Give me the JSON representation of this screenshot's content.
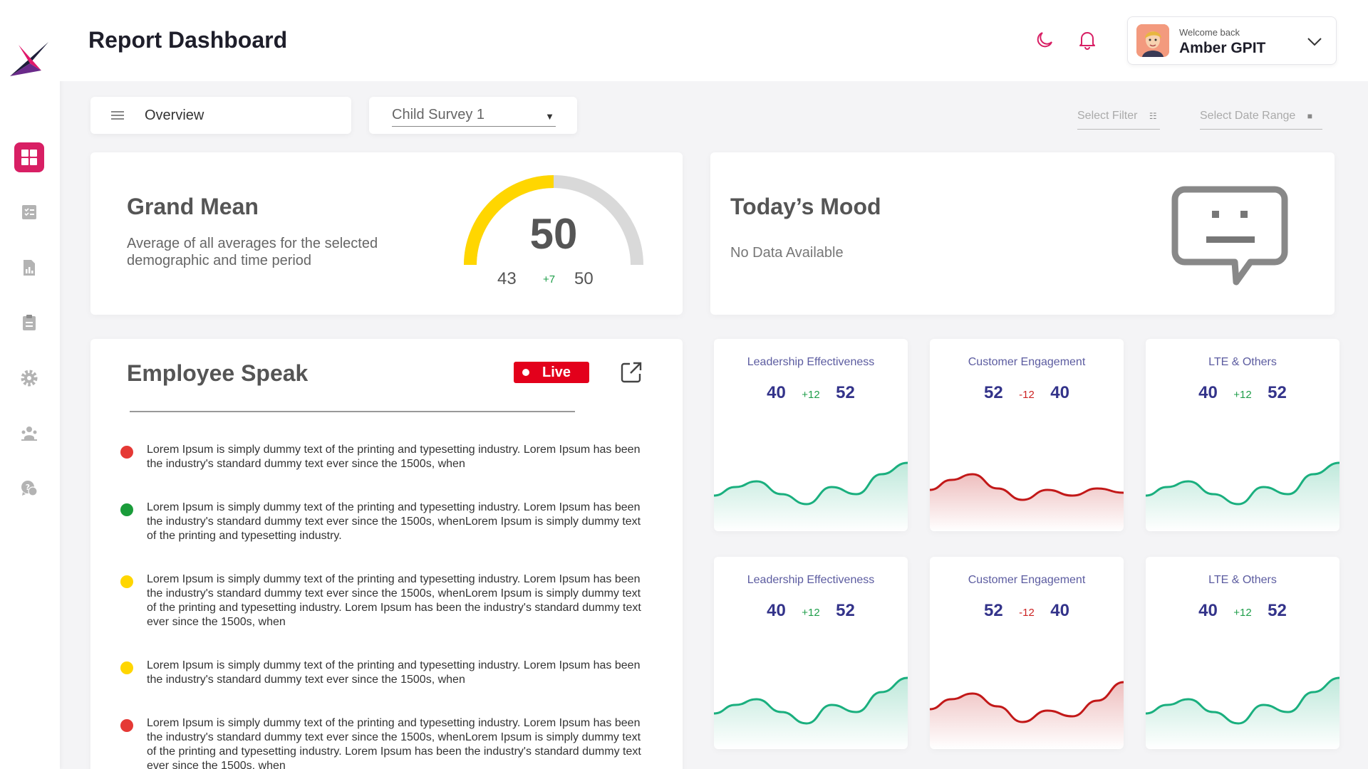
{
  "header": {
    "title": "Report Dashboard",
    "welcome": "Welcome back",
    "username": "Amber GPIT"
  },
  "sidebar": {
    "items": [
      {
        "name": "dashboard",
        "active": true
      },
      {
        "name": "checklist"
      },
      {
        "name": "reports"
      },
      {
        "name": "clipboard"
      },
      {
        "name": "settings"
      },
      {
        "name": "team"
      },
      {
        "name": "support"
      }
    ]
  },
  "toolbar": {
    "overview_label": "Overview",
    "survey_value": "Child Survey 1",
    "filter_placeholder": "Select Filter",
    "date_range_placeholder": "Select Date Range"
  },
  "grand_mean": {
    "title": "Grand Mean",
    "description": "Average of all averages for the selected demographic and time period",
    "value": "50",
    "gauge_fraction": 0.5,
    "previous": "43",
    "change": "+7",
    "current": "50",
    "colors": {
      "fill": "#ffd600",
      "track": "#d9d9d9"
    }
  },
  "mood": {
    "title": "Today’s Mood",
    "subtitle": "No Data Available"
  },
  "employee_speak": {
    "title": "Employee Speak",
    "live_label": "Live",
    "items": [
      {
        "color": "#e53935",
        "text": "Lorem Ipsum is simply dummy text of the printing and typesetting industry. Lorem Ipsum has been the industry's standard dummy text ever since the 1500s, when"
      },
      {
        "color": "#1a9c3a",
        "text": "Lorem Ipsum is simply dummy text of the printing and typesetting industry. Lorem Ipsum has been the industry's standard dummy text ever since the 1500s, whenLorem Ipsum is simply dummy text of the printing and typesetting industry."
      },
      {
        "color": "#ffd600",
        "text": "Lorem Ipsum is simply dummy text of the printing and typesetting industry. Lorem Ipsum has been the industry's standard dummy text ever since the 1500s, whenLorem Ipsum is simply dummy text of the printing and typesetting industry. Lorem Ipsum has been the industry's standard dummy text ever since the 1500s, when"
      },
      {
        "color": "#ffd600",
        "text": "Lorem Ipsum is simply dummy text of the printing and typesetting industry. Lorem Ipsum has been the industry's standard dummy text ever since the 1500s, when"
      },
      {
        "color": "#e53935",
        "text": "Lorem Ipsum is simply dummy text of the printing and typesetting industry. Lorem Ipsum has been the industry's standard dummy text ever since the 1500s, whenLorem Ipsum is simply dummy text of the printing and typesetting industry. Lorem Ipsum has been the industry's standard dummy text ever since the 1500s, when"
      }
    ]
  },
  "metrics": [
    {
      "title": "Leadership Effectiveness",
      "left": "40",
      "delta": "+12",
      "right": "52",
      "trend": "up",
      "color": "#1aaf7e"
    },
    {
      "title": "Customer Engagement",
      "left": "52",
      "delta": "-12",
      "right": "40",
      "trend": "down",
      "color": "#c21818"
    },
    {
      "title": "LTE & Others",
      "left": "40",
      "delta": "+12",
      "right": "52",
      "trend": "up",
      "color": "#1aaf7e"
    },
    {
      "title": "Leadership Effectiveness",
      "left": "40",
      "delta": "+12",
      "right": "52",
      "trend": "up",
      "color": "#1aaf7e"
    },
    {
      "title": "Customer Engagement",
      "left": "52",
      "delta": "-12",
      "right": "40",
      "trend": "down",
      "color": "#c21818"
    },
    {
      "title": "LTE & Others",
      "left": "40",
      "delta": "+12",
      "right": "52",
      "trend": "up",
      "color": "#1aaf7e"
    }
  ],
  "colors": {
    "accent": "#d81f64",
    "title": "#1e1e2a",
    "metric_value": "#33338a",
    "metric_title": "#5c5ca0",
    "live": "#e3001b"
  }
}
